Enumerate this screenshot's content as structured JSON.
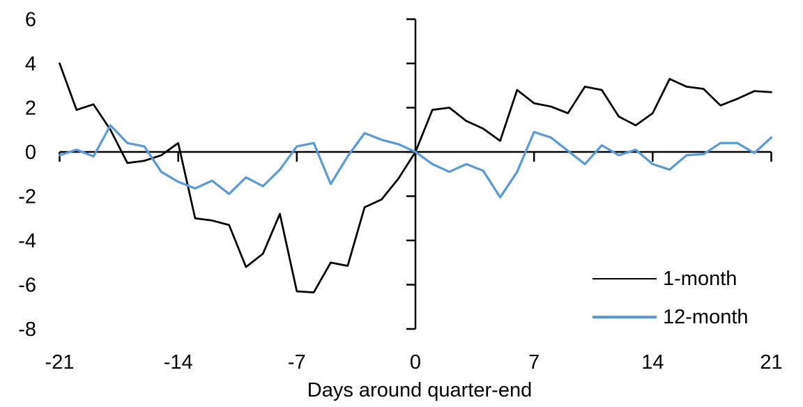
{
  "chart_data": {
    "type": "line",
    "title": "",
    "xlabel": "Days around quarter-end",
    "ylabel": "",
    "xlim": [
      -21,
      21
    ],
    "ylim": [
      -8,
      6
    ],
    "x_ticks": [
      -21,
      -14,
      -7,
      0,
      7,
      14,
      21
    ],
    "y_ticks": [
      6,
      4,
      2,
      0,
      -2,
      -4,
      -6,
      -8
    ],
    "grid": false,
    "legend_position": "inside-bottom-right",
    "axis_color": "#000000",
    "x": [
      -21,
      -20,
      -19,
      -18,
      -17,
      -16,
      -15,
      -14,
      -13,
      -12,
      -11,
      -10,
      -9,
      -8,
      -7,
      -6,
      -5,
      -4,
      -3,
      -2,
      -1,
      0,
      1,
      2,
      3,
      4,
      5,
      6,
      7,
      8,
      9,
      10,
      11,
      12,
      13,
      14,
      15,
      16,
      17,
      18,
      19,
      20,
      21
    ],
    "series": [
      {
        "name": "1-month",
        "color": "#000000",
        "values": [
          4.0,
          1.9,
          2.15,
          1.0,
          -0.5,
          -0.4,
          -0.15,
          0.4,
          -3.0,
          -3.1,
          -3.3,
          -5.2,
          -4.6,
          -2.8,
          -6.3,
          -6.35,
          -5.0,
          -5.15,
          -2.5,
          -2.15,
          -1.2,
          0.0,
          1.9,
          2.0,
          1.4,
          1.05,
          0.5,
          2.8,
          2.2,
          2.05,
          1.75,
          2.95,
          2.8,
          1.6,
          1.2,
          1.75,
          3.3,
          2.95,
          2.85,
          2.1,
          2.4,
          2.75,
          2.7
        ]
      },
      {
        "name": "12-month",
        "color": "#5B9BD5",
        "values": [
          -0.15,
          0.1,
          -0.2,
          1.2,
          0.4,
          0.25,
          -0.9,
          -1.35,
          -1.65,
          -1.3,
          -1.9,
          -1.15,
          -1.55,
          -0.8,
          0.25,
          0.4,
          -1.45,
          -0.2,
          0.85,
          0.55,
          0.35,
          0.0,
          -0.55,
          -0.9,
          -0.55,
          -0.85,
          -2.05,
          -0.9,
          0.9,
          0.65,
          0.05,
          -0.55,
          0.3,
          -0.15,
          0.1,
          -0.55,
          -0.8,
          -0.15,
          -0.1,
          0.4,
          0.4,
          -0.05,
          0.65
        ]
      }
    ]
  }
}
